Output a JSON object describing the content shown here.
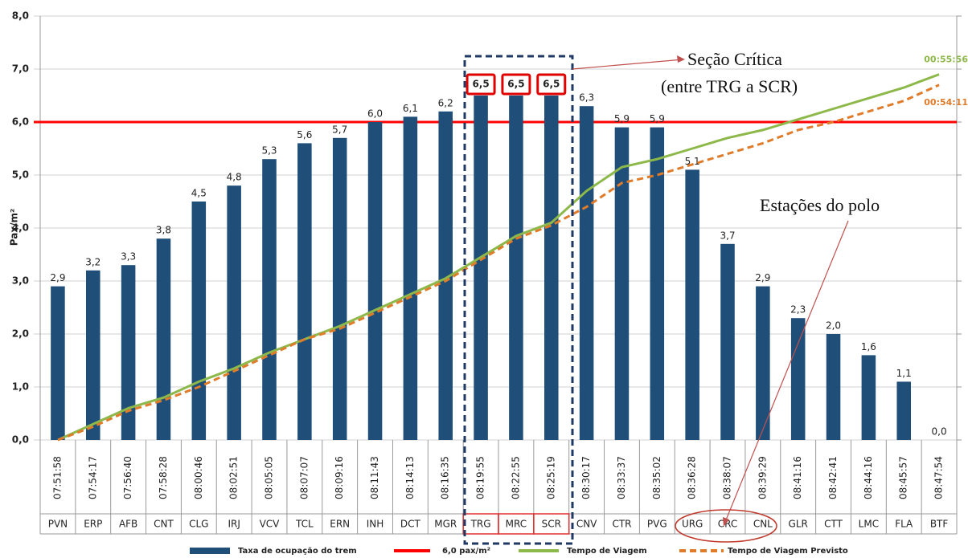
{
  "chart_data": {
    "type": "bar",
    "y_label": "Pax/m²",
    "categories": [
      "PVN",
      "ERP",
      "AFB",
      "CNT",
      "CLG",
      "IRJ",
      "VCV",
      "TCL",
      "ERN",
      "INH",
      "DCT",
      "MGR",
      "TRG",
      "MRC",
      "SCR",
      "CNV",
      "CTR",
      "PVG",
      "URG",
      "CRC",
      "CNL",
      "GLR",
      "CTT",
      "LMC",
      "FLA",
      "BTF"
    ],
    "times": [
      "07:51:58",
      "07:54:17",
      "07:56:40",
      "07:58:28",
      "08:00:46",
      "08:02:51",
      "08:05:05",
      "08:07:07",
      "08:09:16",
      "08:11:43",
      "08:14:13",
      "08:16:35",
      "08:19:55",
      "08:22:55",
      "08:25:19",
      "08:30:17",
      "08:33:37",
      "08:35:02",
      "08:36:28",
      "08:38:07",
      "08:39:29",
      "08:41:16",
      "08:42:41",
      "08:44:16",
      "08:45:57",
      "08:47:54"
    ],
    "series": [
      {
        "name": "Taxa de ocupação do trem",
        "color": "#1f4e79",
        "kind": "bar",
        "values": [
          2.9,
          3.2,
          3.3,
          3.8,
          4.5,
          4.8,
          5.3,
          5.6,
          5.7,
          6.0,
          6.1,
          6.2,
          6.5,
          6.5,
          6.5,
          6.3,
          5.9,
          5.9,
          5.1,
          3.7,
          2.9,
          2.3,
          2.0,
          1.6,
          1.1,
          0.0
        ],
        "value_labels": [
          "2,9",
          "3,2",
          "3,3",
          "3,8",
          "4,5",
          "4,8",
          "5,3",
          "5,6",
          "5,7",
          "6,0",
          "6,1",
          "6,2",
          "6,5",
          "6,5",
          "6,5",
          "6,3",
          "5,9",
          "5,9",
          "5,1",
          "3,7",
          "2,9",
          "2,3",
          "2,0",
          "1,6",
          "1,1",
          "0,0"
        ]
      },
      {
        "name": "Tempo de Viagem",
        "color": "#8db84a",
        "kind": "line",
        "end_label": "00:55:56",
        "values": [
          0.0,
          0.3,
          0.6,
          0.8,
          1.1,
          1.35,
          1.65,
          1.9,
          2.15,
          2.45,
          2.75,
          3.05,
          3.45,
          3.85,
          4.1,
          4.7,
          5.15,
          5.3,
          5.5,
          5.7,
          5.85,
          6.05,
          6.25,
          6.45,
          6.65,
          6.9
        ]
      },
      {
        "name": "Tempo de Viagem Previsto",
        "color": "#e07b2a",
        "kind": "dashed",
        "end_label": "00:54:11",
        "values": [
          0.0,
          0.25,
          0.55,
          0.75,
          1.0,
          1.3,
          1.6,
          1.9,
          2.1,
          2.4,
          2.7,
          3.0,
          3.4,
          3.8,
          4.05,
          4.4,
          4.85,
          5.0,
          5.2,
          5.4,
          5.6,
          5.85,
          6.0,
          6.2,
          6.4,
          6.7
        ]
      }
    ],
    "reference_line": {
      "name": "6,0 pax/m²",
      "value": 6.0,
      "color": "#ff0000"
    },
    "ylim": [
      0,
      8
    ],
    "yticks": [
      {
        "value": 0,
        "label": "0,0"
      },
      {
        "value": 1,
        "label": "1,0"
      },
      {
        "value": 2,
        "label": "2,0"
      },
      {
        "value": 3,
        "label": "3,0"
      },
      {
        "value": 4,
        "label": "4,0"
      },
      {
        "value": 5,
        "label": "5,0"
      },
      {
        "value": 6,
        "label": "6,0"
      },
      {
        "value": 7,
        "label": "7,0"
      },
      {
        "value": 8,
        "label": "8,0"
      }
    ],
    "grid": true,
    "annotations": [
      "Seção Crítica",
      "(entre TRG a SCR)",
      "Estações do polo"
    ]
  }
}
